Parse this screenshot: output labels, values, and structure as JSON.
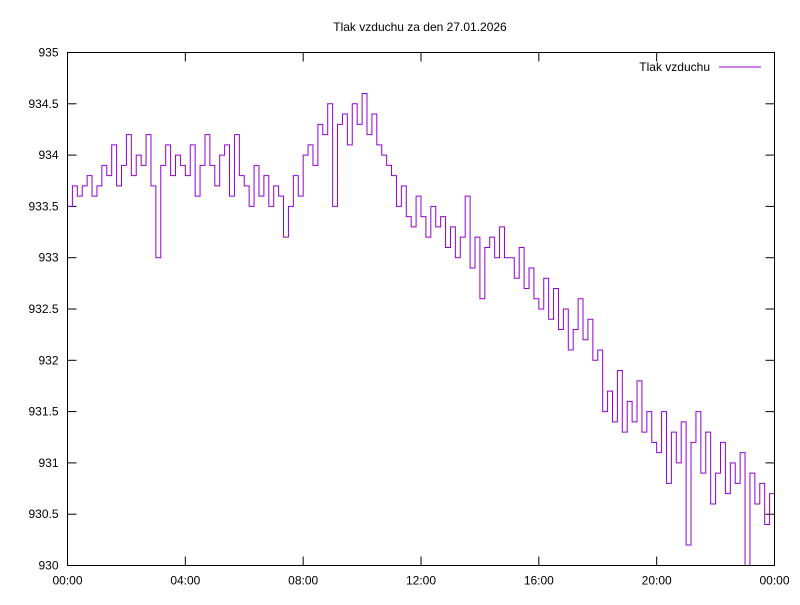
{
  "chart_data": {
    "type": "line",
    "title": "Tlak vzduchu za den 27.01.2026",
    "xlabel": "",
    "ylabel": "",
    "legend": {
      "label": "Tlak vzduchu",
      "placement": "top-right"
    },
    "series_color": "#9400d3",
    "xlim_hours": [
      0,
      24
    ],
    "ylim": [
      930,
      935
    ],
    "y_ticks": [
      "930",
      "930.5",
      "931",
      "931.5",
      "932",
      "932.5",
      "933",
      "933.5",
      "934",
      "934.5",
      "935"
    ],
    "x_ticks": [
      "00:00",
      "04:00",
      "08:00",
      "12:00",
      "16:00",
      "20:00",
      "00:00"
    ],
    "sample_interval_minutes": 10,
    "values": [
      933.5,
      933.7,
      933.6,
      933.7,
      933.8,
      933.6,
      933.7,
      933.9,
      933.8,
      934.1,
      933.7,
      933.9,
      934.2,
      933.8,
      934.0,
      933.9,
      934.2,
      933.7,
      933.0,
      933.9,
      934.1,
      933.8,
      934.0,
      933.9,
      933.8,
      934.1,
      933.6,
      933.9,
      934.2,
      933.9,
      933.7,
      934.0,
      934.1,
      933.6,
      934.2,
      933.8,
      933.7,
      933.5,
      933.9,
      933.6,
      933.8,
      933.5,
      933.7,
      933.6,
      933.2,
      933.5,
      933.8,
      933.6,
      934.0,
      934.1,
      933.9,
      934.3,
      934.2,
      934.5,
      933.5,
      934.3,
      934.4,
      934.1,
      934.5,
      934.3,
      934.6,
      934.2,
      934.4,
      934.1,
      934.0,
      933.9,
      933.8,
      933.5,
      933.7,
      933.4,
      933.3,
      933.6,
      933.4,
      933.2,
      933.5,
      933.3,
      933.4,
      933.1,
      933.3,
      933.0,
      933.2,
      933.6,
      932.9,
      933.2,
      932.6,
      933.1,
      933.2,
      933.0,
      933.3,
      933.0,
      933.0,
      932.8,
      933.1,
      932.7,
      932.9,
      932.6,
      932.5,
      932.8,
      932.4,
      932.7,
      932.3,
      932.5,
      932.1,
      932.3,
      932.6,
      932.2,
      932.4,
      932.0,
      932.1,
      931.5,
      931.7,
      931.4,
      931.9,
      931.3,
      931.6,
      931.4,
      931.8,
      931.3,
      931.5,
      931.2,
      931.1,
      931.5,
      930.8,
      931.3,
      931.0,
      931.4,
      930.2,
      931.2,
      931.5,
      930.9,
      931.3,
      930.6,
      930.9,
      931.2,
      930.7,
      931.0,
      930.8,
      931.1,
      930.0,
      930.9,
      930.6,
      930.8,
      930.4,
      930.7,
      930.5
    ]
  }
}
